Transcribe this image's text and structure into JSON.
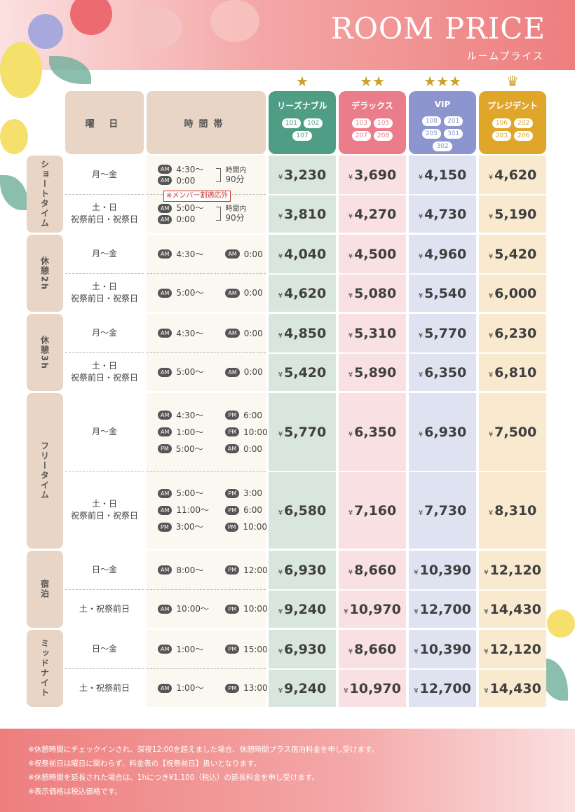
{
  "header": {
    "title": "ROOM PRICE",
    "subtitle": "ルームプライス"
  },
  "table_header": {
    "day": "曜 日",
    "time": "時間帯"
  },
  "rooms": [
    {
      "name": "リーズナブル",
      "stars": "★",
      "numbers": [
        "101",
        "102",
        "107"
      ],
      "color": "#4f9d84",
      "bg": "#d9e6dd"
    },
    {
      "name": "デラックス",
      "stars": "★★",
      "numbers": [
        "103",
        "105",
        "207",
        "208"
      ],
      "color": "#eb7c8a",
      "bg": "#f9e0e2"
    },
    {
      "name": "VIP",
      "stars": "★★★",
      "numbers": [
        "108",
        "201",
        "205",
        "301",
        "302"
      ],
      "color": "#8d95cf",
      "bg": "#dfe2f0"
    },
    {
      "name": "プレジデント",
      "stars": "♛",
      "numbers": [
        "106",
        "202",
        "203",
        "206"
      ],
      "color": "#e0a629",
      "bg": "#f8e9cf"
    }
  ],
  "yen": "¥",
  "badges": {
    "am": "AM",
    "pm": "PM"
  },
  "sections": [
    {
      "name": "ショートタイム",
      "rows": [
        {
          "days": [
            "月～金"
          ],
          "times": [
            [
              "AM",
              "4:30～",
              ""
            ]
          ],
          "time_extra": [
            "AM",
            "0:00"
          ],
          "note_side": [
            "時間内",
            "90分"
          ],
          "prices": [
            "3,230",
            "3,690",
            "4,150",
            "4,620"
          ]
        },
        {
          "days": [
            "土・日",
            "祝祭前日・祝祭日"
          ],
          "times": [
            [
              "AM",
              "5:00～",
              ""
            ]
          ],
          "time_extra": [
            "AM",
            "0:00"
          ],
          "note_side": [
            "時間内",
            "90分"
          ],
          "prices": [
            "3,810",
            "4,270",
            "4,730",
            "5,190"
          ]
        }
      ],
      "member_note": "※メンバー割適応外"
    },
    {
      "name": "休憩2h",
      "rows": [
        {
          "days": [
            "月～金"
          ],
          "times": [
            [
              "AM",
              "4:30～",
              "AM",
              "0:00"
            ]
          ],
          "prices": [
            "4,040",
            "4,500",
            "4,960",
            "5,420"
          ]
        },
        {
          "days": [
            "土・日",
            "祝祭前日・祝祭日"
          ],
          "times": [
            [
              "AM",
              "5:00～",
              "AM",
              "0:00"
            ]
          ],
          "prices": [
            "4,620",
            "5,080",
            "5,540",
            "6,000"
          ]
        }
      ]
    },
    {
      "name": "休憩3h",
      "rows": [
        {
          "days": [
            "月～金"
          ],
          "times": [
            [
              "AM",
              "4:30～",
              "AM",
              "0:00"
            ]
          ],
          "prices": [
            "4,850",
            "5,310",
            "5,770",
            "6,230"
          ]
        },
        {
          "days": [
            "土・日",
            "祝祭前日・祝祭日"
          ],
          "times": [
            [
              "AM",
              "5:00～",
              "AM",
              "0:00"
            ]
          ],
          "prices": [
            "5,420",
            "5,890",
            "6,350",
            "6,810"
          ]
        }
      ]
    },
    {
      "name": "フリータイム",
      "rows": [
        {
          "days": [
            "月～金"
          ],
          "times": [
            [
              "AM",
              "4:30～",
              "PM",
              "6:00"
            ],
            [
              "AM",
              "1:00～",
              "PM",
              "10:00"
            ],
            [
              "PM",
              "5:00～",
              "AM",
              "0:00"
            ]
          ],
          "prices": [
            "5,770",
            "6,350",
            "6,930",
            "7,500"
          ]
        },
        {
          "days": [
            "土・日",
            "祝祭前日・祝祭日"
          ],
          "times": [
            [
              "AM",
              "5:00～",
              "PM",
              "3:00"
            ],
            [
              "AM",
              "11:00～",
              "PM",
              "6:00"
            ],
            [
              "PM",
              "3:00～",
              "PM",
              "10:00"
            ]
          ],
          "prices": [
            "6,580",
            "7,160",
            "7,730",
            "8,310"
          ]
        }
      ]
    },
    {
      "name": "宿泊",
      "rows": [
        {
          "days": [
            "日～金"
          ],
          "times": [
            [
              "AM",
              "8:00～",
              "PM",
              "12:00"
            ]
          ],
          "prices": [
            "6,930",
            "8,660",
            "10,390",
            "12,120"
          ]
        },
        {
          "days": [
            "土・祝祭前日"
          ],
          "times": [
            [
              "AM",
              "10:00～",
              "PM",
              "10:00"
            ]
          ],
          "prices": [
            "9,240",
            "10,970",
            "12,700",
            "14,430"
          ]
        }
      ]
    },
    {
      "name": "ミッドナイト",
      "rows": [
        {
          "days": [
            "日～金"
          ],
          "times": [
            [
              "AM",
              "1:00～",
              "PM",
              "15:00"
            ]
          ],
          "prices": [
            "6,930",
            "8,660",
            "10,390",
            "12,120"
          ]
        },
        {
          "days": [
            "土・祝祭前日"
          ],
          "times": [
            [
              "AM",
              "1:00～",
              "PM",
              "13:00"
            ]
          ],
          "prices": [
            "9,240",
            "10,970",
            "12,700",
            "14,430"
          ]
        }
      ]
    }
  ],
  "footer": {
    "notes": [
      "※休憩時間にチェックインされ、深夜12:00を超えました場合、休憩時間プラス宿泊料金を申し受けます。",
      "※祝祭前日は曜日に関わらず、料金表の【祝祭前日】扱いとなります。",
      "※休憩時間を延長された場合は、1hにつき¥1,100（税込）の延長料金を申し受けます。",
      "※表示価格は税込価格です。"
    ]
  }
}
